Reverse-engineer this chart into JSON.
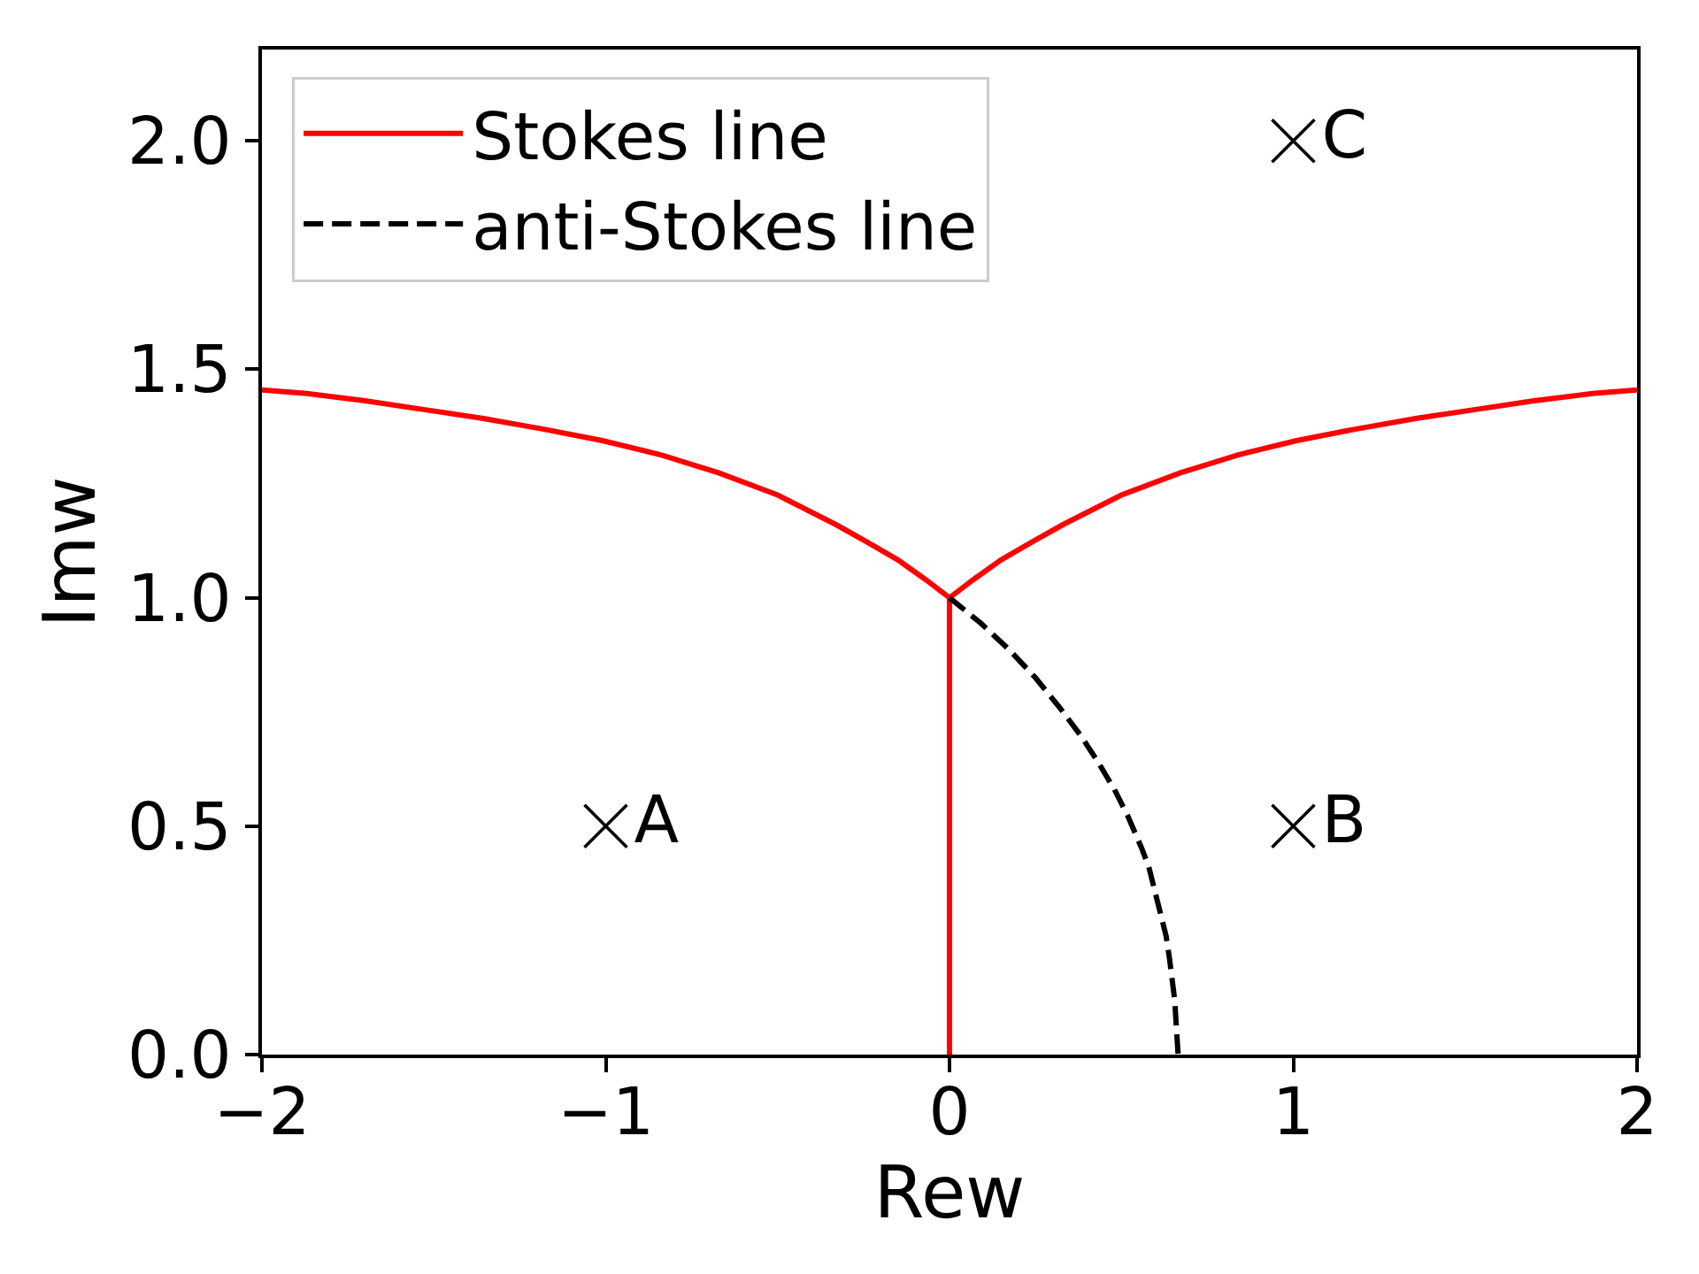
{
  "chart_data": {
    "type": "line",
    "xlabel": "Rew",
    "ylabel": "Imw",
    "xlim": [
      -2,
      2
    ],
    "ylim": [
      0,
      2.2
    ],
    "xticks": [
      {
        "value": -2,
        "label": "−2"
      },
      {
        "value": -1,
        "label": "−1"
      },
      0,
      1,
      2
    ],
    "yticks": [
      {
        "value": 0,
        "label": "0.0"
      },
      {
        "value": 0.5,
        "label": "0.5"
      },
      {
        "value": 1,
        "label": "1.0"
      },
      {
        "value": 1.5,
        "label": "1.5"
      },
      {
        "value": 2,
        "label": "2.0"
      }
    ],
    "grid": false,
    "legend": "top left",
    "series": [
      {
        "name": "Stokes line",
        "color": "#ff0000",
        "line_style": "solid",
        "x": [
          -2,
          -1.87,
          -1.7,
          -1.53,
          -1.36,
          -1.18,
          -1.01,
          -0.84,
          -0.67,
          -0.5,
          -0.33,
          -0.24,
          -0.15,
          -0.07,
          0,
          0,
          0,
          0.07,
          0.15,
          0.24,
          0.33,
          0.5,
          0.67,
          0.84,
          1.01,
          1.18,
          1.36,
          1.53,
          1.7,
          1.87,
          2
        ],
        "values": [
          1.455,
          1.447,
          1.431,
          1.412,
          1.393,
          1.369,
          1.344,
          1.313,
          1.273,
          1.225,
          1.16,
          1.122,
          1.083,
          1.04,
          1.0,
          0,
          1.0,
          1.04,
          1.083,
          1.122,
          1.16,
          1.225,
          1.273,
          1.313,
          1.344,
          1.369,
          1.393,
          1.412,
          1.431,
          1.447,
          1.455
        ]
      },
      {
        "name": "anti-Stokes line",
        "color": "#000000",
        "line_style": "dashed",
        "x": [
          0,
          0.09,
          0.17,
          0.25,
          0.32,
          0.38,
          0.43,
          0.48,
          0.52,
          0.56,
          0.58,
          0.61,
          0.63,
          0.64,
          0.655,
          0.665
        ],
        "values": [
          1.0,
          0.945,
          0.889,
          0.825,
          0.76,
          0.7,
          0.643,
          0.58,
          0.52,
          0.45,
          0.41,
          0.32,
          0.26,
          0.21,
          0.12,
          0
        ]
      },
      {
        "type": "scatter",
        "name": "A",
        "color": "#000000",
        "marker": "cross",
        "x": [
          -1
        ],
        "values": [
          0.5
        ]
      },
      {
        "type": "scatter",
        "name": "B",
        "color": "#000000",
        "marker": "cross",
        "x": [
          1
        ],
        "values": [
          0.5
        ]
      },
      {
        "type": "scatter",
        "name": "C",
        "color": "#000000",
        "marker": "cross",
        "x": [
          1
        ],
        "values": [
          2.0
        ]
      }
    ]
  }
}
